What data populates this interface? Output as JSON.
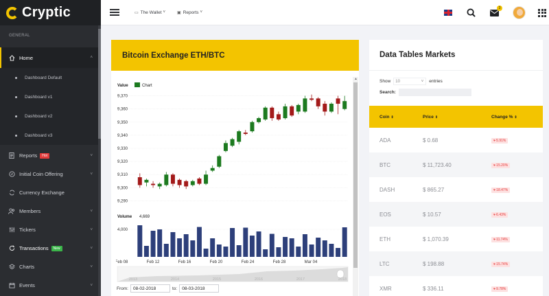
{
  "app": {
    "name": "Cryptic"
  },
  "sidebar": {
    "section": "GENERAL",
    "home": "Home",
    "sub_items": [
      "Dashboard Default",
      "Dashboard v1",
      "Dashboard v2",
      "Dashboard v3"
    ],
    "items": [
      {
        "label": "Reports",
        "badge": "Hot"
      },
      {
        "label": "Initial Coin Offering"
      },
      {
        "label": "Currency Exchange"
      },
      {
        "label": "Members"
      },
      {
        "label": "Tickers"
      },
      {
        "label": "Transactions",
        "badge": "New"
      },
      {
        "label": "Charts"
      },
      {
        "label": "Events"
      }
    ]
  },
  "topbar": {
    "wallet": "The Wallet",
    "reports": "Reports",
    "notification_count": "3"
  },
  "chart_panel": {
    "title": "Bitcoin Exchange ETH/BTC",
    "from_label": "From:",
    "to_label": "to:",
    "from_value": "08-02-2018",
    "to_value": "08-03-2018"
  },
  "chart_data": {
    "type": "candlestick",
    "title": "",
    "legend": {
      "label": "Value",
      "series": "Chart"
    },
    "ylim": [
      9285,
      9375
    ],
    "y_ticks": [
      "9,370",
      "9,360",
      "9,350",
      "9,340",
      "9,330",
      "9,320",
      "9,310",
      "9,300",
      "9,290"
    ],
    "volume_label": "Volume",
    "volume_value": "4,669",
    "volume_tick": "4,000",
    "x_ticks": [
      "Feb 08",
      "Feb 12",
      "Feb 16",
      "Feb 20",
      "Feb 24",
      "Feb 28",
      "Mar 04"
    ],
    "navigator_years": [
      "2013",
      "2014",
      "2015",
      "2016",
      "2017",
      "2018"
    ],
    "candles": [
      {
        "o": 9308,
        "c": 9302,
        "h": 9311,
        "l": 9300
      },
      {
        "o": 9304,
        "c": 9306,
        "h": 9307,
        "l": 9301
      },
      {
        "o": 9303,
        "c": 9302,
        "h": 9305,
        "l": 9300
      },
      {
        "o": 9301,
        "c": 9303,
        "h": 9304,
        "l": 9299
      },
      {
        "o": 9302,
        "c": 9310,
        "h": 9312,
        "l": 9301
      },
      {
        "o": 9310,
        "c": 9303,
        "h": 9311,
        "l": 9301
      },
      {
        "o": 9306,
        "c": 9302,
        "h": 9307,
        "l": 9300
      },
      {
        "o": 9305,
        "c": 9301,
        "h": 9306,
        "l": 9299
      },
      {
        "o": 9302,
        "c": 9305,
        "h": 9306,
        "l": 9301
      },
      {
        "o": 9307,
        "c": 9303,
        "h": 9308,
        "l": 9302
      },
      {
        "o": 9303,
        "c": 9310,
        "h": 9313,
        "l": 9302
      },
      {
        "o": 9313,
        "c": 9315,
        "h": 9317,
        "l": 9312
      },
      {
        "o": 9316,
        "c": 9324,
        "h": 9325,
        "l": 9315
      },
      {
        "o": 9328,
        "c": 9334,
        "h": 9336,
        "l": 9327
      },
      {
        "o": 9332,
        "c": 9337,
        "h": 9338,
        "l": 9331
      },
      {
        "o": 9335,
        "c": 9343,
        "h": 9344,
        "l": 9333
      },
      {
        "o": 9342,
        "c": 9341,
        "h": 9344,
        "l": 9340
      },
      {
        "o": 9343,
        "c": 9350,
        "h": 9351,
        "l": 9342
      },
      {
        "o": 9350,
        "c": 9353,
        "h": 9354,
        "l": 9349
      },
      {
        "o": 9352,
        "c": 9361,
        "h": 9362,
        "l": 9351
      },
      {
        "o": 9361,
        "c": 9353,
        "h": 9362,
        "l": 9351
      },
      {
        "o": 9356,
        "c": 9352,
        "h": 9358,
        "l": 9351
      },
      {
        "o": 9353,
        "c": 9362,
        "h": 9364,
        "l": 9352
      },
      {
        "o": 9362,
        "c": 9355,
        "h": 9363,
        "l": 9354
      },
      {
        "o": 9358,
        "c": 9363,
        "h": 9364,
        "l": 9356
      },
      {
        "o": 9358,
        "c": 9368,
        "h": 9370,
        "l": 9357
      },
      {
        "o": 9368,
        "c": 9367,
        "h": 9371,
        "l": 9366
      },
      {
        "o": 9368,
        "c": 9362,
        "h": 9369,
        "l": 9360
      },
      {
        "o": 9364,
        "c": 9358,
        "h": 9366,
        "l": 9355
      },
      {
        "o": 9358,
        "c": 9364,
        "h": 9365,
        "l": 9357
      },
      {
        "o": 9368,
        "c": 9364,
        "h": 9370,
        "l": 9356
      },
      {
        "o": 9360,
        "c": 9366,
        "h": 9370,
        "l": 9359
      }
    ],
    "volume": [
      4600,
      1600,
      3800,
      4000,
      1900,
      3600,
      2700,
      3300,
      2400,
      4350,
      1200,
      2700,
      1800,
      1500,
      4200,
      1700,
      4250,
      3100,
      3700,
      1100,
      3350,
      1400,
      2900,
      2700,
      1500,
      3300,
      1800,
      2800,
      2400,
      1900,
      1300,
      4300
    ]
  },
  "markets": {
    "title": "Data Tables Markets",
    "show": "Show",
    "entries_value": "10",
    "entries": "entries",
    "search": "Search:",
    "headers": [
      "Coin",
      "Price",
      "Change %"
    ],
    "rows": [
      {
        "coin": "ADA",
        "price": "$ 0.68",
        "change": "-5.91%"
      },
      {
        "coin": "BTC",
        "price": "$ 11,723.40",
        "change": "-15.20%"
      },
      {
        "coin": "DASH",
        "price": "$ 865.27",
        "change": "-18.47%"
      },
      {
        "coin": "EOS",
        "price": "$ 10.57",
        "change": "-6.43%"
      },
      {
        "coin": "ETH",
        "price": "$ 1,070.39",
        "change": "-11.74%"
      },
      {
        "coin": "LTC",
        "price": "$ 198.88",
        "change": "-15.74%"
      },
      {
        "coin": "XMR",
        "price": "$ 336.11",
        "change": "-9.78%"
      }
    ]
  },
  "colors": {
    "accent": "#f3c400",
    "up": "#1c7a1f",
    "down": "#a31a1a",
    "volume": "#2d3f7a",
    "sidebar": "#2b2d31"
  }
}
